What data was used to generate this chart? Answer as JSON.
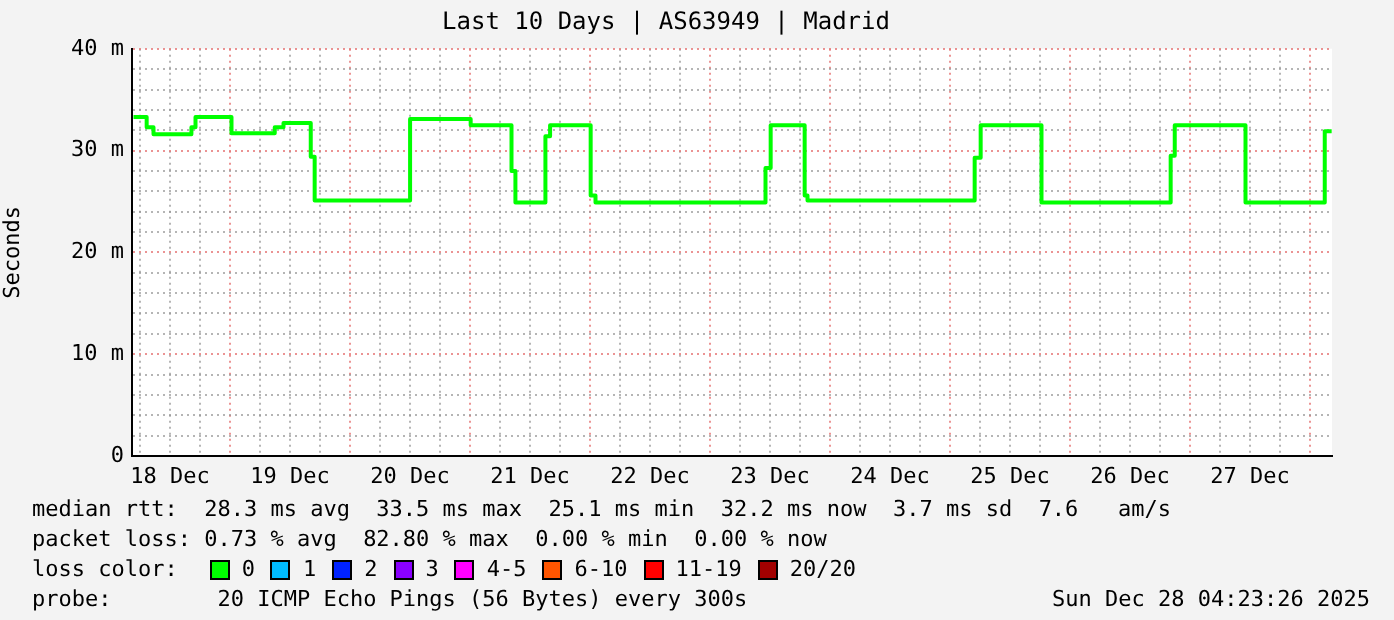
{
  "chart_data": {
    "type": "step",
    "title": "Last 10 Days | AS63949 | Madrid",
    "ylabel": "Seconds",
    "x": [
      "2025-12-18T04:41",
      "2025-12-18T07:19",
      "2025-12-18T08:41",
      "2025-12-18T16:16",
      "2025-12-18T17:05",
      "2025-12-19T00:17",
      "2025-12-19T08:56",
      "2025-12-19T10:41",
      "2025-12-19T16:08",
      "2025-12-19T16:55",
      "2025-12-20T12:00",
      "2025-12-21T00:07",
      "2025-12-21T08:17",
      "2025-12-21T09:04",
      "2025-12-21T15:04",
      "2025-12-21T16:00",
      "2025-12-22T00:07",
      "2025-12-22T01:05",
      "2025-12-23T11:05",
      "2025-12-23T12:07",
      "2025-12-23T18:55",
      "2025-12-23T19:29",
      "2025-12-25T04:55",
      "2025-12-25T06:07",
      "2025-12-25T18:17",
      "2025-12-26T20:07",
      "2025-12-26T20:56",
      "2025-12-27T11:05",
      "2025-12-28T02:56",
      "2025-12-28T04:19"
    ],
    "series": [
      {
        "name": "0",
        "color": "#00ff00",
        "values": [
          33.3,
          32.3,
          31.6,
          32.3,
          33.3,
          31.7,
          32.3,
          32.7,
          29.4,
          25.1,
          33.1,
          32.5,
          28.0,
          24.9,
          31.4,
          32.5,
          25.6,
          24.9,
          28.3,
          32.5,
          25.6,
          25.1,
          29.3,
          32.5,
          24.9,
          29.5,
          32.5,
          24.9,
          31.9,
          31.9
        ]
      }
    ],
    "xlim": [
      "2025-12-18T04:23",
      "2025-12-28T04:23"
    ],
    "xticks": [
      {
        "value": "2025-12-18T06:00",
        "label": null
      },
      {
        "value": "2025-12-18T12:00",
        "label": "18 Dec"
      },
      {
        "value": "2025-12-18T18:00",
        "label": null
      },
      {
        "value": "2025-12-19T00:00",
        "label": null
      },
      {
        "value": "2025-12-19T06:00",
        "label": null
      },
      {
        "value": "2025-12-19T12:00",
        "label": "19 Dec"
      },
      {
        "value": "2025-12-19T18:00",
        "label": null
      },
      {
        "value": "2025-12-20T00:00",
        "label": null
      },
      {
        "value": "2025-12-20T06:00",
        "label": null
      },
      {
        "value": "2025-12-20T12:00",
        "label": "20 Dec"
      },
      {
        "value": "2025-12-20T18:00",
        "label": null
      },
      {
        "value": "2025-12-21T00:00",
        "label": null
      },
      {
        "value": "2025-12-21T06:00",
        "label": null
      },
      {
        "value": "2025-12-21T12:00",
        "label": "21 Dec"
      },
      {
        "value": "2025-12-21T18:00",
        "label": null
      },
      {
        "value": "2025-12-22T00:00",
        "label": null
      },
      {
        "value": "2025-12-22T06:00",
        "label": null
      },
      {
        "value": "2025-12-22T12:00",
        "label": "22 Dec"
      },
      {
        "value": "2025-12-22T18:00",
        "label": null
      },
      {
        "value": "2025-12-23T00:00",
        "label": null
      },
      {
        "value": "2025-12-23T06:00",
        "label": null
      },
      {
        "value": "2025-12-23T12:00",
        "label": "23 Dec"
      },
      {
        "value": "2025-12-23T18:00",
        "label": null
      },
      {
        "value": "2025-12-24T00:00",
        "label": null
      },
      {
        "value": "2025-12-24T06:00",
        "label": null
      },
      {
        "value": "2025-12-24T12:00",
        "label": "24 Dec"
      },
      {
        "value": "2025-12-24T18:00",
        "label": null
      },
      {
        "value": "2025-12-25T00:00",
        "label": null
      },
      {
        "value": "2025-12-25T06:00",
        "label": null
      },
      {
        "value": "2025-12-25T12:00",
        "label": "25 Dec"
      },
      {
        "value": "2025-12-25T18:00",
        "label": null
      },
      {
        "value": "2025-12-26T00:00",
        "label": null
      },
      {
        "value": "2025-12-26T06:00",
        "label": null
      },
      {
        "value": "2025-12-26T12:00",
        "label": "26 Dec"
      },
      {
        "value": "2025-12-26T18:00",
        "label": null
      },
      {
        "value": "2025-12-27T00:00",
        "label": null
      },
      {
        "value": "2025-12-27T06:00",
        "label": null
      },
      {
        "value": "2025-12-27T12:00",
        "label": "27 Dec"
      },
      {
        "value": "2025-12-27T18:00",
        "label": null
      },
      {
        "value": "2025-12-28T00:00",
        "label": null
      }
    ],
    "ylim": [
      0,
      40
    ],
    "yticks": [
      {
        "value": 0,
        "label": "0"
      },
      {
        "value": 2,
        "label": null
      },
      {
        "value": 4,
        "label": null
      },
      {
        "value": 6,
        "label": null
      },
      {
        "value": 8,
        "label": null
      },
      {
        "value": 10,
        "label": "10 m"
      },
      {
        "value": 12,
        "label": null
      },
      {
        "value": 14,
        "label": null
      },
      {
        "value": 16,
        "label": null
      },
      {
        "value": 18,
        "label": null
      },
      {
        "value": 20,
        "label": "20 m"
      },
      {
        "value": 22,
        "label": null
      },
      {
        "value": 24,
        "label": null
      },
      {
        "value": 26,
        "label": null
      },
      {
        "value": 28,
        "label": null
      },
      {
        "value": 30,
        "label": "30 m"
      },
      {
        "value": 32,
        "label": null
      },
      {
        "value": 34,
        "label": null
      },
      {
        "value": 36,
        "label": null
      },
      {
        "value": 38,
        "label": null
      },
      {
        "value": 40,
        "label": "40 m"
      }
    ],
    "grid": true,
    "legend": "bottom",
    "marker": "none",
    "line_style": "solid",
    "annotations": [
      "median rtt:  28.3 ms avg  33.5 ms max  25.1 ms min  32.2 ms now  3.7 ms sd  7.6   am/s",
      "packet loss: 0.73 % avg  82.80 % max  0.00 % min  0.00 % now",
      "loss color:",
      "1",
      "2",
      "3",
      "4-5",
      "6-10",
      "11-19",
      "20/20",
      "probe:        20 ICMP Echo Pings (56 Bytes) every 300s",
      "Sun Dec 28 04:23:26 2025"
    ]
  }
}
